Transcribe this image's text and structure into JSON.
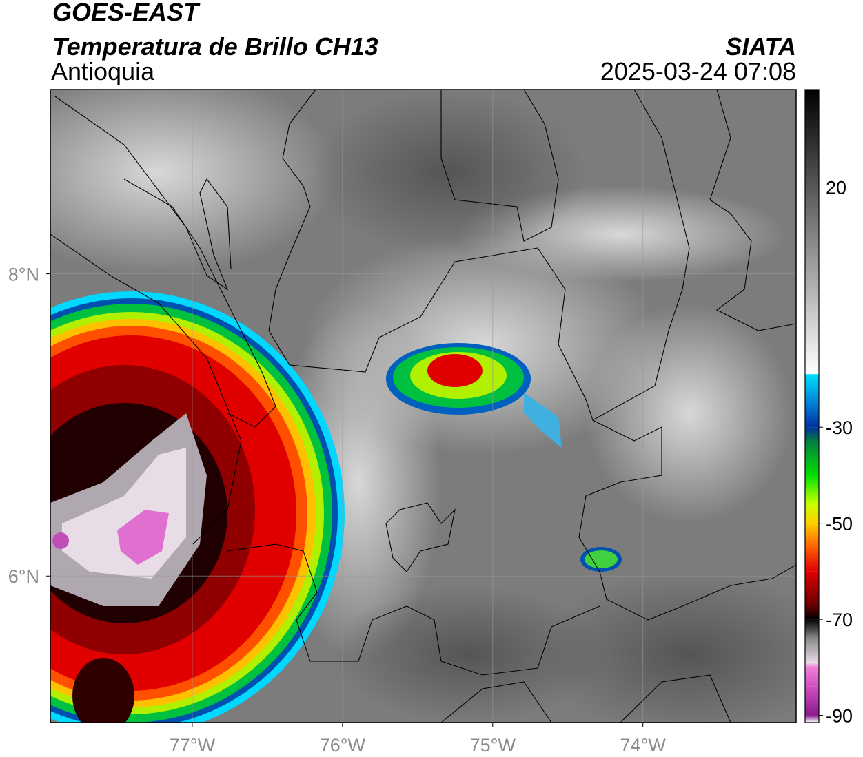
{
  "title": "GOES-EAST",
  "subtitle": "Temperatura de Brillo CH13",
  "region": "Antioquia",
  "source": "SIATA",
  "datetime": "2025-03-24 07:08",
  "map": {
    "xlim": [
      -77.945,
      -72.98
    ],
    "ylim": [
      5.03,
      9.22
    ],
    "xticks": [
      {
        "value": -77,
        "label": "77°W"
      },
      {
        "value": -76,
        "label": "76°W"
      },
      {
        "value": -75,
        "label": "75°W"
      },
      {
        "value": -74,
        "label": "74°W"
      }
    ],
    "yticks": [
      {
        "value": 6,
        "label": "6°N"
      },
      {
        "value": 8,
        "label": "8°N"
      }
    ],
    "grid": true
  },
  "colorbar": {
    "lim": [
      -91.5,
      40.3
    ],
    "ticks": [
      -90,
      -70,
      -50,
      -30,
      20
    ],
    "stops": [
      {
        "value": -91.5,
        "color": "#ffffff"
      },
      {
        "value": -90,
        "color": "#8a1a8a"
      },
      {
        "value": -84,
        "color": "#d050c0"
      },
      {
        "value": -80,
        "color": "#f080d8"
      },
      {
        "value": -79,
        "color": "#e8d8e4"
      },
      {
        "value": -74,
        "color": "#8a8a8a"
      },
      {
        "value": -70,
        "color": "#000000"
      },
      {
        "value": -67,
        "color": "#6a0000"
      },
      {
        "value": -60,
        "color": "#e00000"
      },
      {
        "value": -55,
        "color": "#ff6000"
      },
      {
        "value": -50,
        "color": "#ffd000"
      },
      {
        "value": -46,
        "color": "#c8ff00"
      },
      {
        "value": -40,
        "color": "#00e000"
      },
      {
        "value": -33,
        "color": "#008040"
      },
      {
        "value": -30,
        "color": "#0030a0"
      },
      {
        "value": -26,
        "color": "#0070d0"
      },
      {
        "value": -19,
        "color": "#00e0ff"
      },
      {
        "value": -18.9,
        "color": "#ffffff"
      },
      {
        "value": 40.3,
        "color": "#000000"
      }
    ]
  }
}
